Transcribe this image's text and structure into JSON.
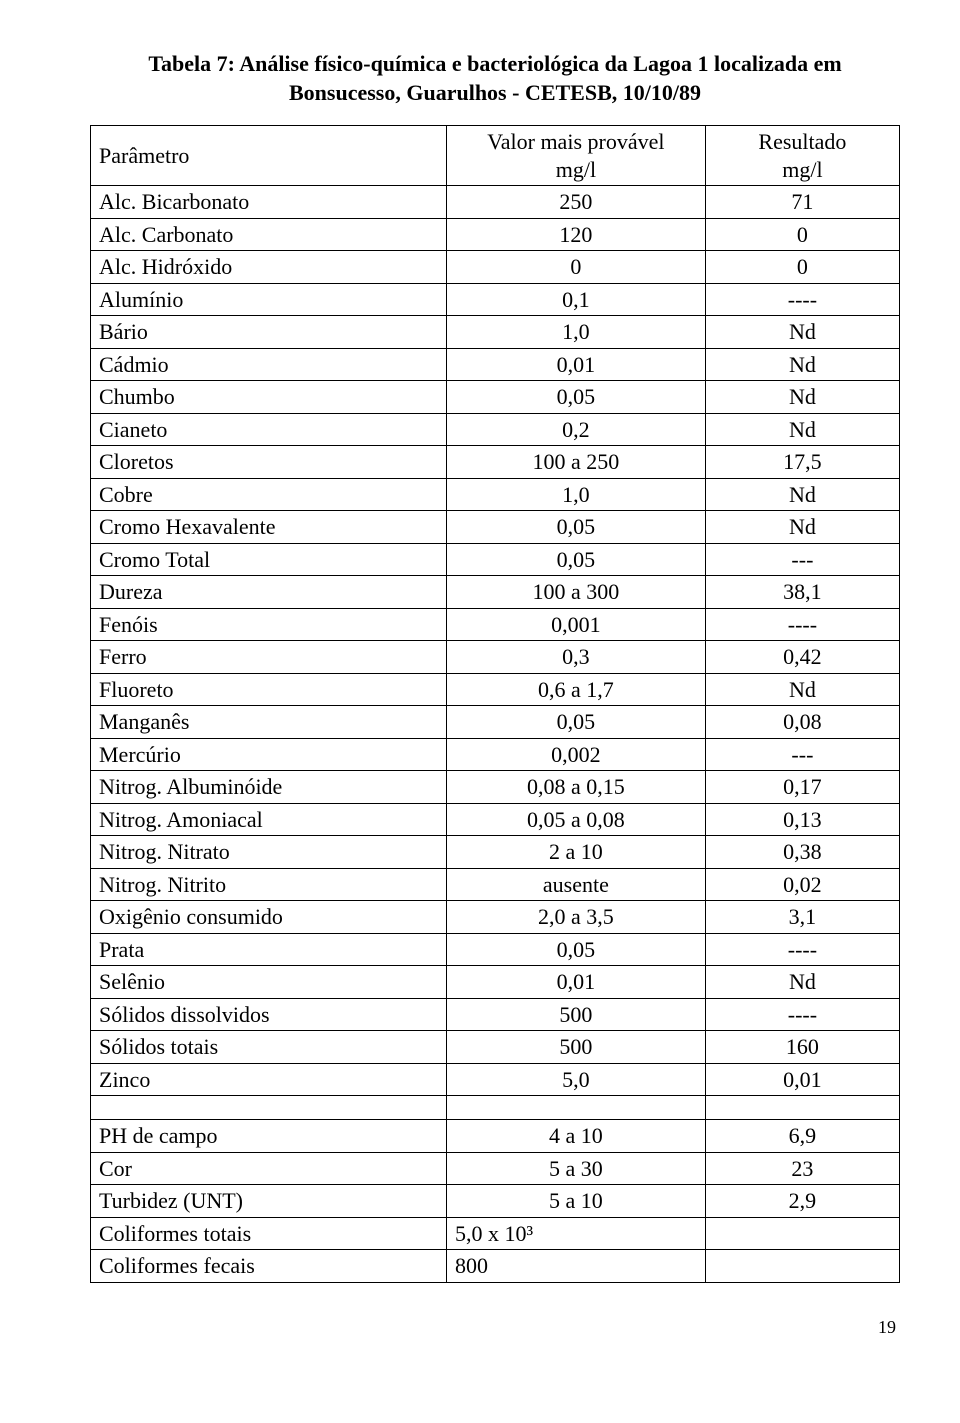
{
  "title_line1": "Tabela 7: Análise físico-química e bacteriológica da Lagoa 1 localizada em",
  "title_line2": "Bonsucesso, Guarulhos - CETESB, 10/10/89",
  "header": {
    "param": "Parâmetro",
    "val_l1": "Valor mais provável",
    "val_l2": "mg/l",
    "res_l1": "Resultado",
    "res_l2": "mg/l"
  },
  "rows1": [
    {
      "p": "Alc. Bicarbonato",
      "v": "250",
      "r": "71"
    },
    {
      "p": "Alc. Carbonato",
      "v": "120",
      "r": "0"
    },
    {
      "p": "Alc. Hidróxido",
      "v": "0",
      "r": "0"
    },
    {
      "p": "Alumínio",
      "v": "0,1",
      "r": "----"
    },
    {
      "p": "Bário",
      "v": "1,0",
      "r": "Nd"
    },
    {
      "p": "Cádmio",
      "v": "0,01",
      "r": "Nd"
    },
    {
      "p": "Chumbo",
      "v": "0,05",
      "r": "Nd"
    },
    {
      "p": "Cianeto",
      "v": "0,2",
      "r": "Nd"
    },
    {
      "p": "Cloretos",
      "v": "100 a 250",
      "r": "17,5"
    },
    {
      "p": "Cobre",
      "v": "1,0",
      "r": "Nd"
    },
    {
      "p": "Cromo Hexavalente",
      "v": "0,05",
      "r": "Nd"
    },
    {
      "p": "Cromo Total",
      "v": "0,05",
      "r": "---"
    },
    {
      "p": "Dureza",
      "v": "100 a 300",
      "r": "38,1"
    },
    {
      "p": "Fenóis",
      "v": "0,001",
      "r": "----"
    },
    {
      "p": "Ferro",
      "v": "0,3",
      "r": "0,42"
    },
    {
      "p": "Fluoreto",
      "v": "0,6 a 1,7",
      "r": "Nd"
    },
    {
      "p": "Manganês",
      "v": "0,05",
      "r": "0,08"
    },
    {
      "p": "Mercúrio",
      "v": "0,002",
      "r": "---"
    },
    {
      "p": "Nitrog. Albuminóide",
      "v": "0,08 a 0,15",
      "r": "0,17"
    },
    {
      "p": "Nitrog. Amoniacal",
      "v": "0,05 a 0,08",
      "r": "0,13"
    },
    {
      "p": "Nitrog. Nitrato",
      "v": "2 a 10",
      "r": "0,38"
    },
    {
      "p": "Nitrog. Nitrito",
      "v": "ausente",
      "r": "0,02"
    },
    {
      "p": "Oxigênio consumido",
      "v": "2,0 a 3,5",
      "r": "3,1"
    },
    {
      "p": "Prata",
      "v": "0,05",
      "r": "----"
    },
    {
      "p": "Selênio",
      "v": "0,01",
      "r": "Nd"
    },
    {
      "p": "Sólidos dissolvidos",
      "v": "500",
      "r": "----"
    },
    {
      "p": "Sólidos totais",
      "v": "500",
      "r": "160"
    },
    {
      "p": "Zinco",
      "v": "5,0",
      "r": "0,01"
    }
  ],
  "rows2": [
    {
      "p": "PH de campo",
      "v": "4 a 10",
      "r": "6,9"
    },
    {
      "p": "Cor",
      "v": "5 a 30",
      "r": "23"
    },
    {
      "p": "Turbidez (UNT)",
      "v": "5 a 10",
      "r": "2,9"
    },
    {
      "p": "Coliformes totais",
      "v": "5,0 x 10³",
      "r": ""
    },
    {
      "p": "Coliformes fecais",
      "v": "800",
      "r": ""
    }
  ],
  "rows2_val_align": [
    "center",
    "center",
    "center",
    "left",
    "left"
  ],
  "page_number": "19"
}
